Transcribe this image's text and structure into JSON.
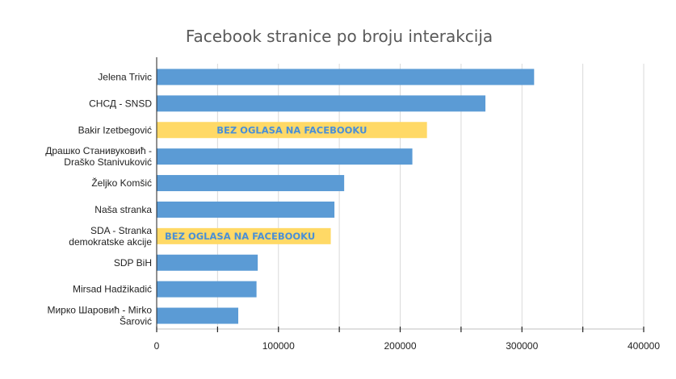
{
  "chart_data": {
    "type": "bar",
    "orientation": "horizontal",
    "title": "Facebook stranice po broju interakcija",
    "categories": [
      [
        "Jelena Trivic"
      ],
      [
        "СНСД - SNSD"
      ],
      [
        "Bakir Izetbegović"
      ],
      [
        "Драшко Станивуковић -",
        "Draško Stanivuković"
      ],
      [
        "Željko Komšić"
      ],
      [
        "Naša stranka"
      ],
      [
        "SDA - Stranka",
        "demokratske akcije"
      ],
      [
        "SDP BiH"
      ],
      [
        "Mirsad Hadžikadić"
      ],
      [
        "Мирко Шаровић - Мirko",
        "Šarović"
      ]
    ],
    "values": [
      310000,
      270000,
      222000,
      210000,
      154000,
      146000,
      143000,
      83000,
      82000,
      67000
    ],
    "annotations": [
      "",
      "",
      "BEZ OGLASA NA FACEBOOKU",
      "",
      "",
      "",
      "BEZ OGLASA NA FACEBOOKU",
      "",
      "",
      ""
    ],
    "xlim": [
      0,
      400000
    ],
    "xticks": [
      0,
      100000,
      200000,
      300000,
      400000
    ],
    "grid": true,
    "colors": {
      "default": "#5b9bd5",
      "highlight": "#ffd966",
      "note_text": "#4a8fd6"
    },
    "highlighted": [
      2,
      6
    ]
  }
}
